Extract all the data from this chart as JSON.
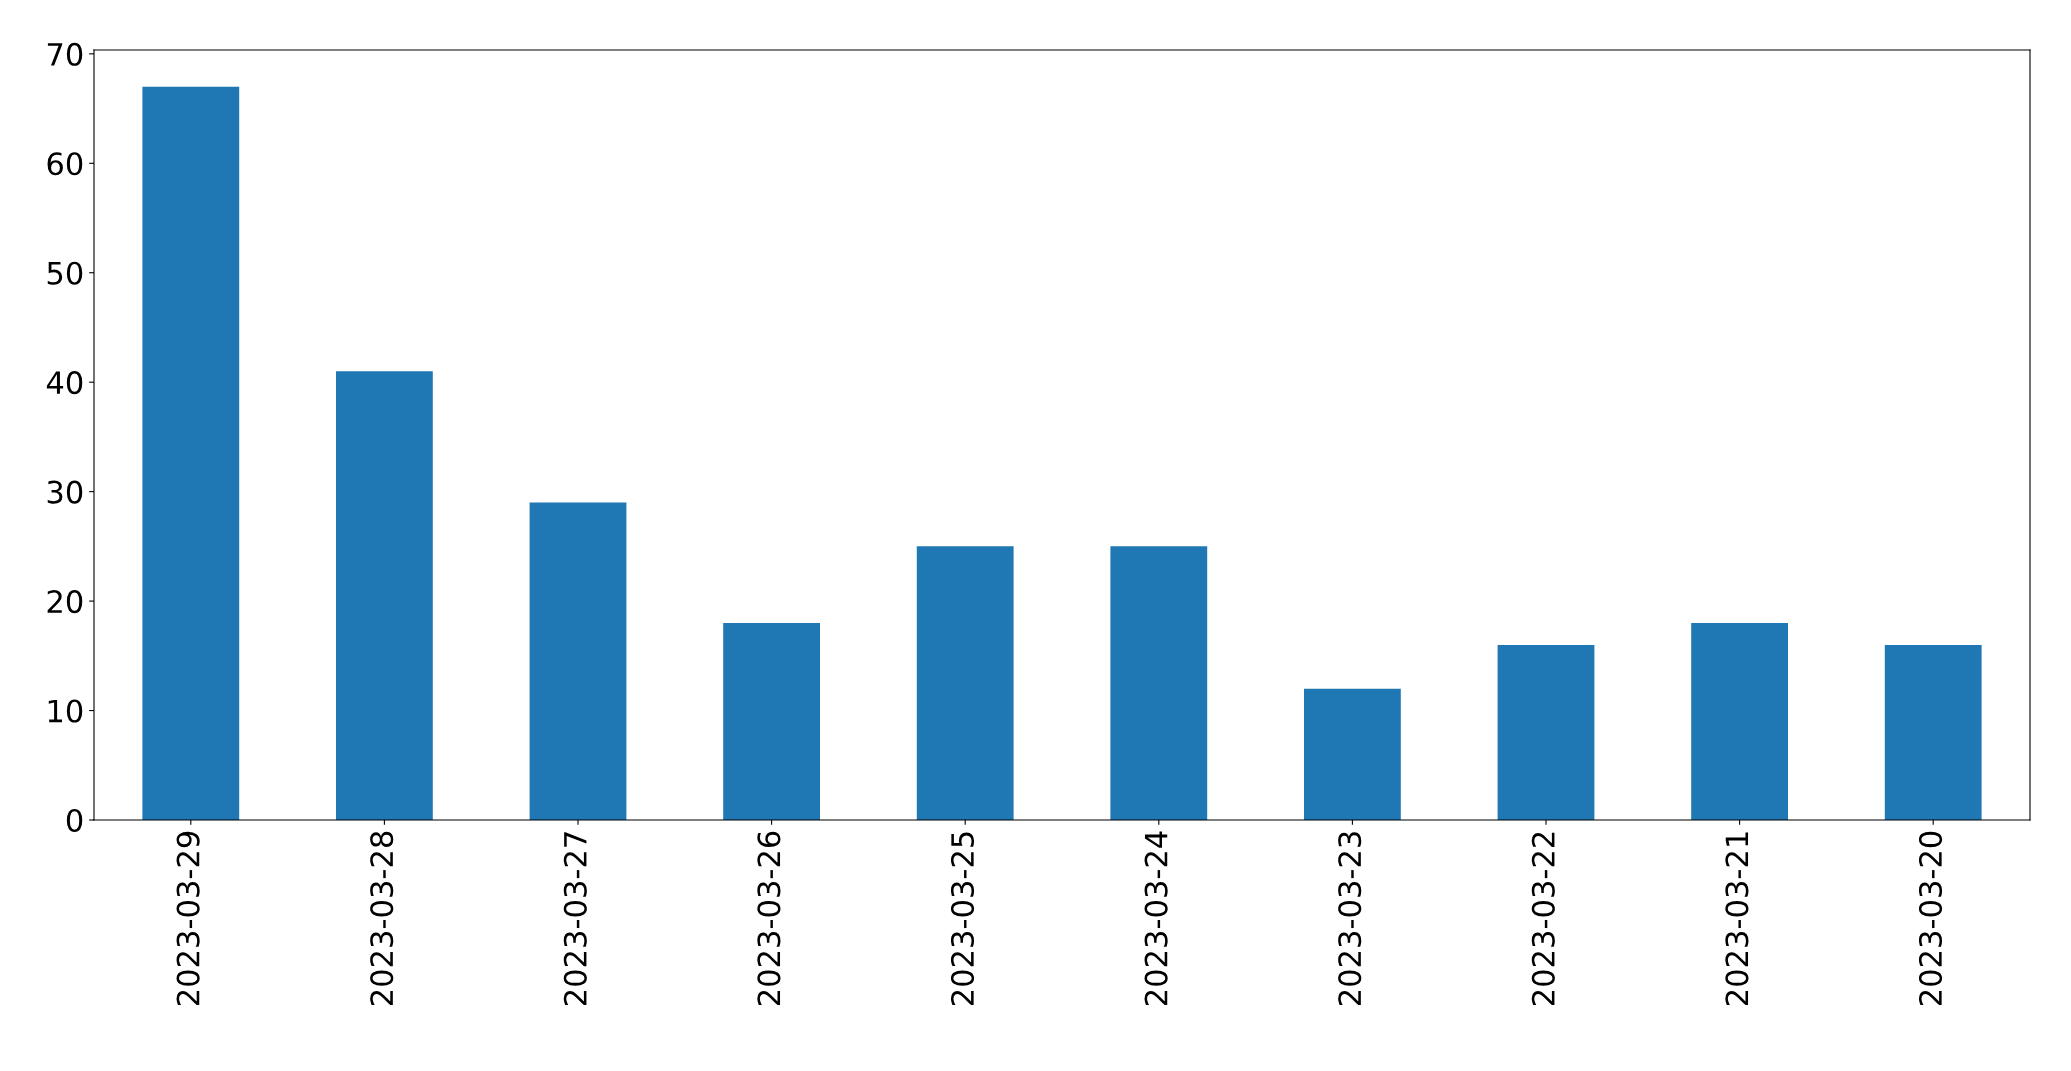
{
  "chart_data": {
    "type": "bar",
    "categories": [
      "2023-03-29",
      "2023-03-28",
      "2023-03-27",
      "2023-03-26",
      "2023-03-25",
      "2023-03-24",
      "2023-03-23",
      "2023-03-22",
      "2023-03-21",
      "2023-03-20"
    ],
    "values": [
      67,
      41,
      29,
      18,
      25,
      25,
      12,
      16,
      18,
      16
    ],
    "color": "#1f77b4",
    "ylim": [
      0,
      70.35
    ],
    "yticks": [
      0,
      10,
      20,
      30,
      40,
      50,
      60,
      70
    ],
    "grid": false,
    "legend": false
  }
}
